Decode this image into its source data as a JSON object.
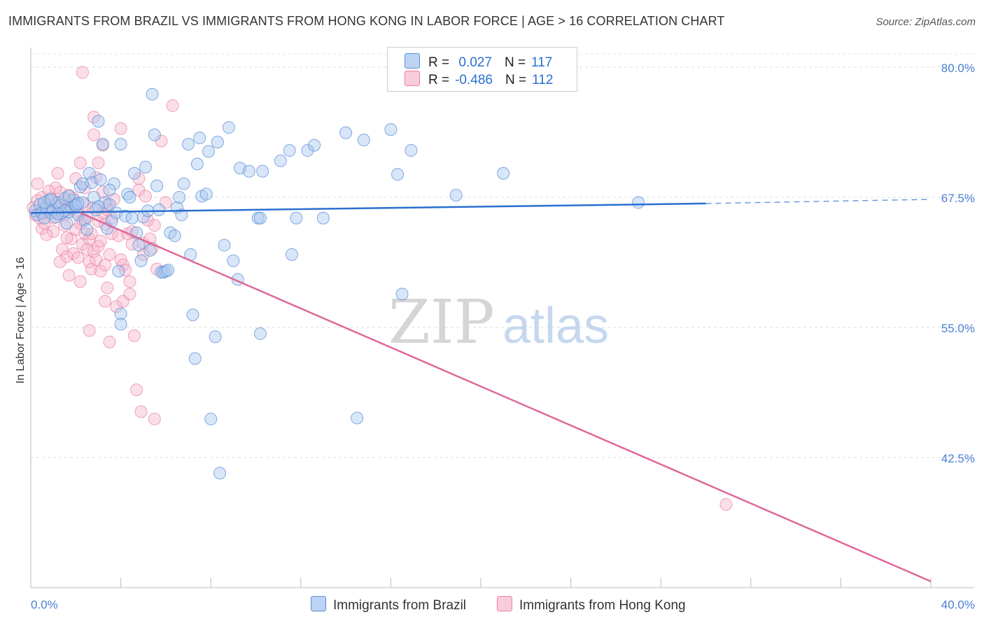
{
  "title": "IMMIGRANTS FROM BRAZIL VS IMMIGRANTS FROM HONG KONG IN LABOR FORCE | AGE > 16 CORRELATION CHART",
  "source": "Source: ZipAtlas.com",
  "watermark": {
    "zip": "ZIP",
    "atlas": "atlas"
  },
  "colors": {
    "brazil_fill": "#a9c7f0",
    "brazil_stroke": "#5b8fd6",
    "brazil_line": "#2a6fd0",
    "hongkong_fill": "#f6b8cc",
    "hongkong_stroke": "#e87fa2",
    "hongkong_line": "#e0689a",
    "tick_text": "#4a7fd4"
  },
  "legend": {
    "r_label": "R =",
    "n_label": "N =",
    "brazil": {
      "r": "0.027",
      "n": "117"
    },
    "hongkong": {
      "r": "-0.486",
      "n": "112"
    }
  },
  "bottom_legend": {
    "brazil": "Immigrants from Brazil",
    "hongkong": "Immigrants from Hong Kong"
  },
  "chart_data": {
    "type": "scatter",
    "title": "IMMIGRANTS FROM BRAZIL VS IMMIGRANTS FROM HONG KONG IN LABOR FORCE | AGE > 16 CORRELATION CHART",
    "xlabel": "",
    "ylabel": "In Labor Force | Age > 16",
    "xlim": [
      0,
      40
    ],
    "ylim": [
      30,
      82
    ],
    "x_tick_labels": [
      "0.0%",
      "40.0%"
    ],
    "y_ticks": [
      80.0,
      67.5,
      55.0,
      42.5
    ],
    "y_tick_labels": [
      "80.0%",
      "67.5%",
      "55.0%",
      "42.5%"
    ],
    "grid": true,
    "legend_position": "top-center",
    "series": [
      {
        "name": "Immigrants from Brazil",
        "r": 0.027,
        "n": 117,
        "trend": {
          "x0": 0,
          "y0": 66.0,
          "x1": 30,
          "y1": 66.9,
          "dashed_to_x": 40,
          "dashed_to_y": 67.3
        },
        "points": [
          [
            0.2,
            66.2
          ],
          [
            0.3,
            65.8
          ],
          [
            0.4,
            66.8
          ],
          [
            0.5,
            66.0
          ],
          [
            0.6,
            65.5
          ],
          [
            0.7,
            66.5
          ],
          [
            0.8,
            67.2
          ],
          [
            0.9,
            66.0
          ],
          [
            1.0,
            66.3
          ],
          [
            1.1,
            65.6
          ],
          [
            1.2,
            67.0
          ],
          [
            1.3,
            66.7
          ],
          [
            1.4,
            66.0
          ],
          [
            1.5,
            67.4
          ],
          [
            1.6,
            65.0
          ],
          [
            1.7,
            66.1
          ],
          [
            1.8,
            66.5
          ],
          [
            1.9,
            67.2
          ],
          [
            2.0,
            66.8
          ],
          [
            2.1,
            65.8
          ],
          [
            2.2,
            68.5
          ],
          [
            2.3,
            67.0
          ],
          [
            2.4,
            65.3
          ],
          [
            2.5,
            64.4
          ],
          [
            2.6,
            69.8
          ],
          [
            2.7,
            68.9
          ],
          [
            2.8,
            67.5
          ],
          [
            2.9,
            66.3
          ],
          [
            3.0,
            74.8
          ],
          [
            3.1,
            69.2
          ],
          [
            3.2,
            72.6
          ],
          [
            3.3,
            67.0
          ],
          [
            3.4,
            64.5
          ],
          [
            3.5,
            66.8
          ],
          [
            3.6,
            65.2
          ],
          [
            3.7,
            68.8
          ],
          [
            3.8,
            66.0
          ],
          [
            3.9,
            60.4
          ],
          [
            4.0,
            56.3
          ],
          [
            4.0,
            55.3
          ],
          [
            4.0,
            72.6
          ],
          [
            4.2,
            65.7
          ],
          [
            4.3,
            67.8
          ],
          [
            4.4,
            67.5
          ],
          [
            4.5,
            65.5
          ],
          [
            4.6,
            69.8
          ],
          [
            4.7,
            64.1
          ],
          [
            4.8,
            62.9
          ],
          [
            4.9,
            61.4
          ],
          [
            5.0,
            65.6
          ],
          [
            5.1,
            70.4
          ],
          [
            5.2,
            66.2
          ],
          [
            5.3,
            62.4
          ],
          [
            5.4,
            77.4
          ],
          [
            5.5,
            73.5
          ],
          [
            5.6,
            68.6
          ],
          [
            5.7,
            66.3
          ],
          [
            5.8,
            60.3
          ],
          [
            5.9,
            60.3
          ],
          [
            6.0,
            60.4
          ],
          [
            6.1,
            60.5
          ],
          [
            6.2,
            64.1
          ],
          [
            6.4,
            63.8
          ],
          [
            6.5,
            66.5
          ],
          [
            6.6,
            67.5
          ],
          [
            6.7,
            65.8
          ],
          [
            6.8,
            68.8
          ],
          [
            7.0,
            72.6
          ],
          [
            7.1,
            62.0
          ],
          [
            7.2,
            56.2
          ],
          [
            7.3,
            52.0
          ],
          [
            7.4,
            70.7
          ],
          [
            7.5,
            73.2
          ],
          [
            7.6,
            67.6
          ],
          [
            7.8,
            67.8
          ],
          [
            7.9,
            71.9
          ],
          [
            8.0,
            46.2
          ],
          [
            8.2,
            54.1
          ],
          [
            8.3,
            72.8
          ],
          [
            8.4,
            41.0
          ],
          [
            8.6,
            62.9
          ],
          [
            8.8,
            74.2
          ],
          [
            9.0,
            61.4
          ],
          [
            9.2,
            59.6
          ],
          [
            9.3,
            70.3
          ],
          [
            9.7,
            70.0
          ],
          [
            10.1,
            65.5
          ],
          [
            10.2,
            65.5
          ],
          [
            10.2,
            54.4
          ],
          [
            10.3,
            70.0
          ],
          [
            11.1,
            71.0
          ],
          [
            11.5,
            72.0
          ],
          [
            11.6,
            62.0
          ],
          [
            11.8,
            65.5
          ],
          [
            12.3,
            72.0
          ],
          [
            12.6,
            72.5
          ],
          [
            13.0,
            65.5
          ],
          [
            14.0,
            73.7
          ],
          [
            14.5,
            46.3
          ],
          [
            14.8,
            73.0
          ],
          [
            16.0,
            74.0
          ],
          [
            16.3,
            69.7
          ],
          [
            16.5,
            58.2
          ],
          [
            16.9,
            72.0
          ],
          [
            18.9,
            67.7
          ],
          [
            21.0,
            69.8
          ],
          [
            27.0,
            67.0
          ],
          [
            1.5,
            66.2
          ],
          [
            2.0,
            66.7
          ],
          [
            0.6,
            67.0
          ],
          [
            0.9,
            67.3
          ],
          [
            1.2,
            65.9
          ],
          [
            1.7,
            67.6
          ],
          [
            2.1,
            66.9
          ],
          [
            3.0,
            66.6
          ],
          [
            3.5,
            68.2
          ],
          [
            2.3,
            68.8
          ]
        ]
      },
      {
        "name": "Immigrants from Hong Kong",
        "r": -0.486,
        "n": 112,
        "trend": {
          "x0": 2.2,
          "y0": 66.0,
          "x1": 40,
          "y1": 30.6
        },
        "points": [
          [
            0.1,
            66.5
          ],
          [
            0.2,
            65.8
          ],
          [
            0.3,
            67.2
          ],
          [
            0.3,
            68.8
          ],
          [
            0.4,
            66.0
          ],
          [
            0.5,
            67.5
          ],
          [
            0.5,
            64.5
          ],
          [
            0.6,
            65.0
          ],
          [
            0.7,
            66.8
          ],
          [
            0.8,
            66.2
          ],
          [
            0.9,
            67.4
          ],
          [
            1.0,
            65.5
          ],
          [
            1.0,
            64.2
          ],
          [
            1.1,
            67.0
          ],
          [
            1.2,
            66.0
          ],
          [
            1.2,
            69.8
          ],
          [
            1.3,
            68.0
          ],
          [
            1.3,
            61.3
          ],
          [
            1.4,
            66.5
          ],
          [
            1.4,
            62.5
          ],
          [
            1.5,
            65.8
          ],
          [
            1.5,
            64.8
          ],
          [
            1.6,
            66.7
          ],
          [
            1.6,
            61.8
          ],
          [
            1.7,
            67.7
          ],
          [
            1.7,
            60.0
          ],
          [
            1.8,
            66.3
          ],
          [
            1.8,
            63.5
          ],
          [
            1.9,
            67.4
          ],
          [
            1.9,
            62.1
          ],
          [
            2.0,
            69.3
          ],
          [
            2.0,
            64.4
          ],
          [
            2.1,
            66.0
          ],
          [
            2.1,
            61.7
          ],
          [
            2.2,
            70.8
          ],
          [
            2.2,
            59.4
          ],
          [
            2.3,
            65.3
          ],
          [
            2.3,
            63.0
          ],
          [
            2.4,
            66.8
          ],
          [
            2.4,
            64.0
          ],
          [
            2.5,
            65.6
          ],
          [
            2.5,
            62.5
          ],
          [
            2.6,
            63.5
          ],
          [
            2.6,
            61.3
          ],
          [
            2.6,
            54.7
          ],
          [
            2.7,
            64.0
          ],
          [
            2.7,
            60.6
          ],
          [
            2.8,
            62.3
          ],
          [
            2.8,
            66.5
          ],
          [
            2.9,
            61.5
          ],
          [
            2.9,
            69.4
          ],
          [
            3.0,
            62.8
          ],
          [
            3.0,
            65.2
          ],
          [
            3.1,
            63.3
          ],
          [
            3.1,
            60.4
          ],
          [
            3.2,
            66.0
          ],
          [
            3.2,
            68.0
          ],
          [
            3.3,
            64.9
          ],
          [
            3.3,
            61.0
          ],
          [
            3.3,
            57.5
          ],
          [
            3.4,
            66.8
          ],
          [
            3.4,
            58.8
          ],
          [
            3.5,
            62.0
          ],
          [
            3.5,
            53.6
          ],
          [
            3.6,
            64.0
          ],
          [
            3.6,
            65.5
          ],
          [
            3.7,
            67.3
          ],
          [
            3.8,
            57.0
          ],
          [
            3.9,
            63.8
          ],
          [
            4.0,
            61.5
          ],
          [
            4.0,
            74.1
          ],
          [
            4.1,
            61.0
          ],
          [
            4.1,
            57.5
          ],
          [
            4.2,
            60.5
          ],
          [
            4.3,
            64.0
          ],
          [
            4.4,
            58.2
          ],
          [
            4.4,
            59.4
          ],
          [
            4.5,
            63.0
          ],
          [
            4.5,
            64.2
          ],
          [
            4.6,
            54.2
          ],
          [
            4.7,
            49.0
          ],
          [
            4.8,
            69.3
          ],
          [
            4.8,
            68.2
          ],
          [
            4.9,
            46.9
          ],
          [
            5.0,
            62.0
          ],
          [
            5.0,
            63.1
          ],
          [
            5.1,
            67.6
          ],
          [
            5.2,
            65.3
          ],
          [
            5.3,
            63.5
          ],
          [
            5.4,
            62.6
          ],
          [
            5.5,
            64.8
          ],
          [
            5.5,
            46.2
          ],
          [
            5.6,
            60.6
          ],
          [
            5.8,
            72.9
          ],
          [
            6.0,
            67.0
          ],
          [
            6.3,
            76.3
          ],
          [
            2.3,
            79.5
          ],
          [
            2.8,
            75.2
          ],
          [
            2.8,
            73.5
          ],
          [
            3.0,
            70.8
          ],
          [
            3.2,
            72.5
          ],
          [
            3.4,
            66.3
          ],
          [
            2.4,
            68.4
          ],
          [
            1.9,
            66.8
          ],
          [
            1.1,
            68.4
          ],
          [
            0.7,
            63.9
          ],
          [
            0.4,
            65.5
          ],
          [
            0.8,
            68.1
          ],
          [
            1.5,
            67.2
          ],
          [
            2.2,
            65.0
          ],
          [
            30.9,
            38.0
          ],
          [
            1.6,
            63.6
          ]
        ]
      }
    ]
  }
}
